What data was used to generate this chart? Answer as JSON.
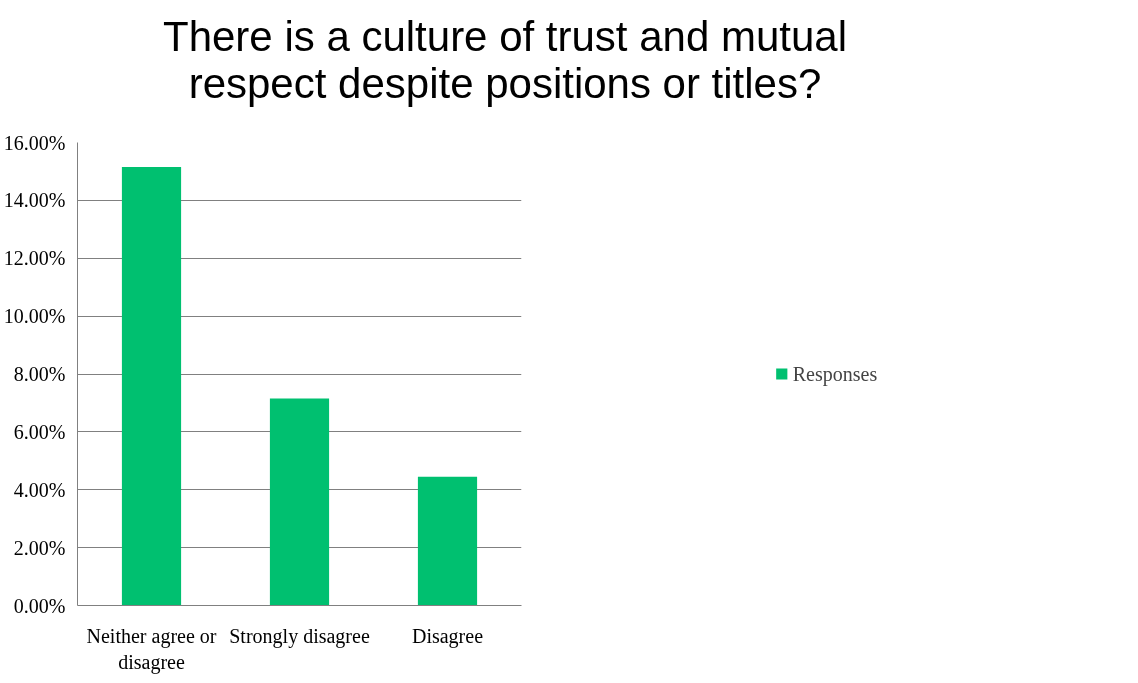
{
  "chart_data": {
    "type": "bar",
    "title": "There is a culture of trust and mutual\nrespect despite positions or titles?",
    "categories": [
      "Neither agree or disagree",
      "Strongly disagree",
      "Disagree"
    ],
    "series": [
      {
        "name": "Responses",
        "color": "#00c070",
        "values": [
          15.15,
          7.15,
          4.45
        ]
      }
    ],
    "ylim": [
      0,
      16
    ],
    "yticks": [
      {
        "value": 0,
        "label": "0.00%"
      },
      {
        "value": 2,
        "label": "2.00%"
      },
      {
        "value": 4,
        "label": "4.00%"
      },
      {
        "value": 6,
        "label": "6.00%"
      },
      {
        "value": 8,
        "label": "8.00%"
      },
      {
        "value": 10,
        "label": "10.00%"
      },
      {
        "value": 12,
        "label": "12.00%"
      },
      {
        "value": 14,
        "label": "14.00%"
      },
      {
        "value": 16,
        "label": "16.00%"
      }
    ],
    "grid": "y",
    "legend": "right"
  }
}
